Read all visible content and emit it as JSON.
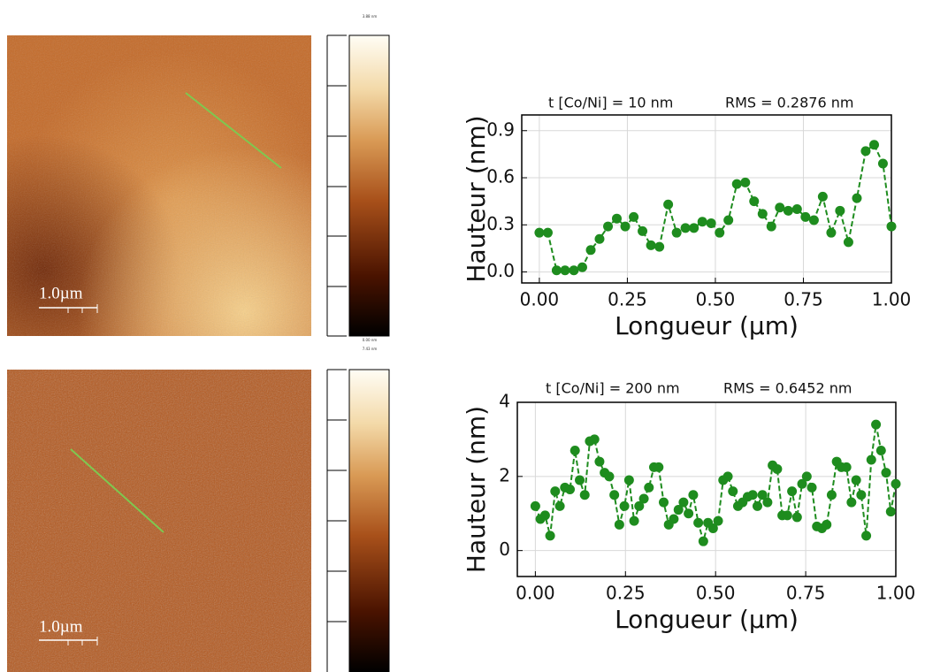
{
  "images": [
    {
      "scale_bar": "1.0µm",
      "colorbar_labels": [
        "3.88 nm",
        "0.00 nm"
      ]
    },
    {
      "scale_bar": "1.0µm",
      "colorbar_labels": [
        "7.43 nm"
      ]
    }
  ],
  "chart_data": [
    {
      "type": "line",
      "annotations": [
        "t [Co/Ni] = 10 nm",
        "RMS = 0.2876 nm"
      ],
      "xlabel": "Longueur (µm)",
      "ylabel": "Hauteur (nm)",
      "color": "#1e8c1e",
      "grid": true,
      "x": [
        0,
        0.024,
        0.049,
        0.073,
        0.098,
        0.122,
        0.146,
        0.171,
        0.195,
        0.22,
        0.244,
        0.268,
        0.293,
        0.317,
        0.341,
        0.366,
        0.39,
        0.415,
        0.439,
        0.463,
        0.488,
        0.512,
        0.537,
        0.561,
        0.585,
        0.61,
        0.634,
        0.659,
        0.683,
        0.707,
        0.732,
        0.756,
        0.78,
        0.805,
        0.829,
        0.854,
        0.878,
        0.902,
        0.927,
        0.951,
        0.976,
        1.0
      ],
      "values": [
        0.25,
        0.25,
        0.01,
        0.01,
        0.01,
        0.03,
        0.14,
        0.21,
        0.29,
        0.34,
        0.29,
        0.35,
        0.26,
        0.17,
        0.16,
        0.43,
        0.25,
        0.28,
        0.28,
        0.32,
        0.31,
        0.25,
        0.33,
        0.56,
        0.57,
        0.45,
        0.37,
        0.29,
        0.41,
        0.39,
        0.4,
        0.35,
        0.33,
        0.48,
        0.25,
        0.39,
        0.19,
        0.47,
        0.77,
        0.81,
        0.69,
        0.29
      ],
      "xlim": [
        -0.05,
        1.0
      ],
      "ylim": [
        -0.07,
        1.0
      ],
      "xticks": [
        {
          "value": 0,
          "label": "0.00"
        },
        {
          "value": 0.25,
          "label": "0.25"
        },
        {
          "value": 0.5,
          "label": "0.50"
        },
        {
          "value": 0.75,
          "label": "0.75"
        },
        {
          "value": 1,
          "label": "1.00"
        }
      ],
      "yticks": [
        {
          "value": 0,
          "label": "0.0"
        },
        0.3,
        0.6,
        0.9
      ]
    },
    {
      "type": "line",
      "annotations": [
        "t [Co/Ni] = 200 nm",
        "RMS = 0.6452 nm"
      ],
      "xlabel": "Longueur (µm)",
      "ylabel": "Hauteur (nm)",
      "color": "#1e8c1e",
      "grid": true,
      "x": [
        0,
        0.014,
        0.027,
        0.041,
        0.055,
        0.068,
        0.082,
        0.096,
        0.11,
        0.123,
        0.137,
        0.151,
        0.164,
        0.178,
        0.192,
        0.205,
        0.219,
        0.233,
        0.247,
        0.26,
        0.274,
        0.288,
        0.301,
        0.315,
        0.329,
        0.342,
        0.356,
        0.37,
        0.384,
        0.397,
        0.411,
        0.425,
        0.438,
        0.452,
        0.466,
        0.479,
        0.493,
        0.507,
        0.521,
        0.534,
        0.548,
        0.562,
        0.575,
        0.589,
        0.603,
        0.616,
        0.63,
        0.644,
        0.658,
        0.671,
        0.685,
        0.699,
        0.712,
        0.726,
        0.74,
        0.753,
        0.767,
        0.781,
        0.795,
        0.808,
        0.822,
        0.836,
        0.849,
        0.863,
        0.877,
        0.89,
        0.904,
        0.918,
        0.932,
        0.945,
        0.959,
        0.973,
        0.986,
        1.0
      ],
      "values": [
        1.2,
        0.85,
        0.95,
        0.4,
        1.6,
        1.2,
        1.7,
        1.65,
        2.7,
        1.9,
        1.5,
        2.95,
        3.0,
        2.4,
        2.1,
        2.0,
        1.5,
        0.7,
        1.2,
        1.9,
        0.8,
        1.2,
        1.4,
        1.7,
        2.25,
        2.25,
        1.3,
        0.7,
        0.85,
        1.1,
        1.3,
        1.0,
        1.5,
        0.75,
        0.25,
        0.75,
        0.6,
        0.8,
        1.9,
        2.0,
        1.6,
        1.2,
        1.3,
        1.45,
        1.5,
        1.2,
        1.5,
        1.3,
        2.3,
        2.2,
        0.95,
        0.95,
        1.6,
        0.9,
        1.8,
        2.0,
        1.7,
        0.65,
        0.6,
        0.7,
        1.5,
        2.4,
        2.25,
        2.25,
        1.3,
        1.9,
        1.5,
        0.4,
        2.45,
        3.4,
        2.7,
        2.1,
        1.05,
        1.8
      ],
      "xlim": [
        -0.05,
        1.0
      ],
      "ylim": [
        -0.7,
        4
      ],
      "xticks": [
        {
          "value": 0,
          "label": "0.00"
        },
        {
          "value": 0.25,
          "label": "0.25"
        },
        {
          "value": 0.5,
          "label": "0.50"
        },
        {
          "value": 0.75,
          "label": "0.75"
        },
        {
          "value": 1,
          "label": "1.00"
        }
      ],
      "yticks": [
        0,
        2,
        4
      ]
    }
  ]
}
